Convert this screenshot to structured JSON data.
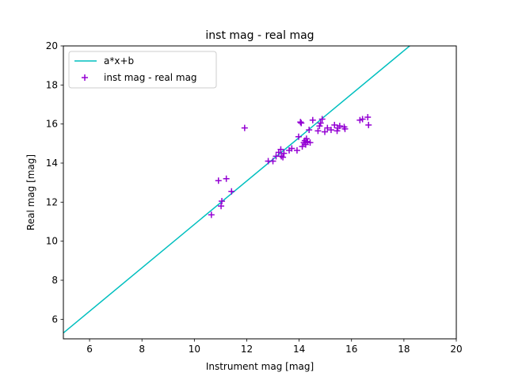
{
  "chart_data": {
    "type": "scatter",
    "title": "inst mag - real mag",
    "xlabel": "Instrument mag [mag]",
    "ylabel": "Real mag [mag]",
    "xlim": [
      5,
      20
    ],
    "ylim": [
      5,
      20
    ],
    "xticks": [
      6,
      8,
      10,
      12,
      14,
      16,
      18,
      20
    ],
    "yticks": [
      6,
      8,
      10,
      12,
      14,
      16,
      18,
      20
    ],
    "grid": false,
    "legend_position": "top-left",
    "series": [
      {
        "name": "a*x+b",
        "kind": "line",
        "color": "#00bfbf",
        "x": [
          5.0,
          18.22
        ],
        "y": [
          5.3,
          20.0
        ]
      },
      {
        "name": "inst mag - real mag",
        "kind": "scatter",
        "marker": "plus",
        "color": "#9400d3",
        "x": [
          10.65,
          10.92,
          11.05,
          11.02,
          11.22,
          11.42,
          11.92,
          12.82,
          13.0,
          13.12,
          13.22,
          13.32,
          13.3,
          13.38,
          13.42,
          13.62,
          13.72,
          13.92,
          13.98,
          14.05,
          14.08,
          14.12,
          14.18,
          14.22,
          14.25,
          14.28,
          14.32,
          14.38,
          14.42,
          14.52,
          14.72,
          14.78,
          14.82,
          14.88,
          14.98,
          15.08,
          15.22,
          15.35,
          15.45,
          15.48,
          15.55,
          15.72,
          15.75,
          16.32,
          16.42,
          16.62,
          16.65
        ],
        "y": [
          11.35,
          13.1,
          12.05,
          11.8,
          13.2,
          12.55,
          15.8,
          14.1,
          14.1,
          14.35,
          14.55,
          14.35,
          14.7,
          14.3,
          14.5,
          14.65,
          14.75,
          14.65,
          15.35,
          16.1,
          16.05,
          14.85,
          15.05,
          15.15,
          14.95,
          15.25,
          15.1,
          15.7,
          15.05,
          16.2,
          15.65,
          15.9,
          16.05,
          16.25,
          15.6,
          15.8,
          15.7,
          15.95,
          15.65,
          15.8,
          15.9,
          15.85,
          15.75,
          16.2,
          16.25,
          16.35,
          15.95
        ]
      }
    ]
  }
}
